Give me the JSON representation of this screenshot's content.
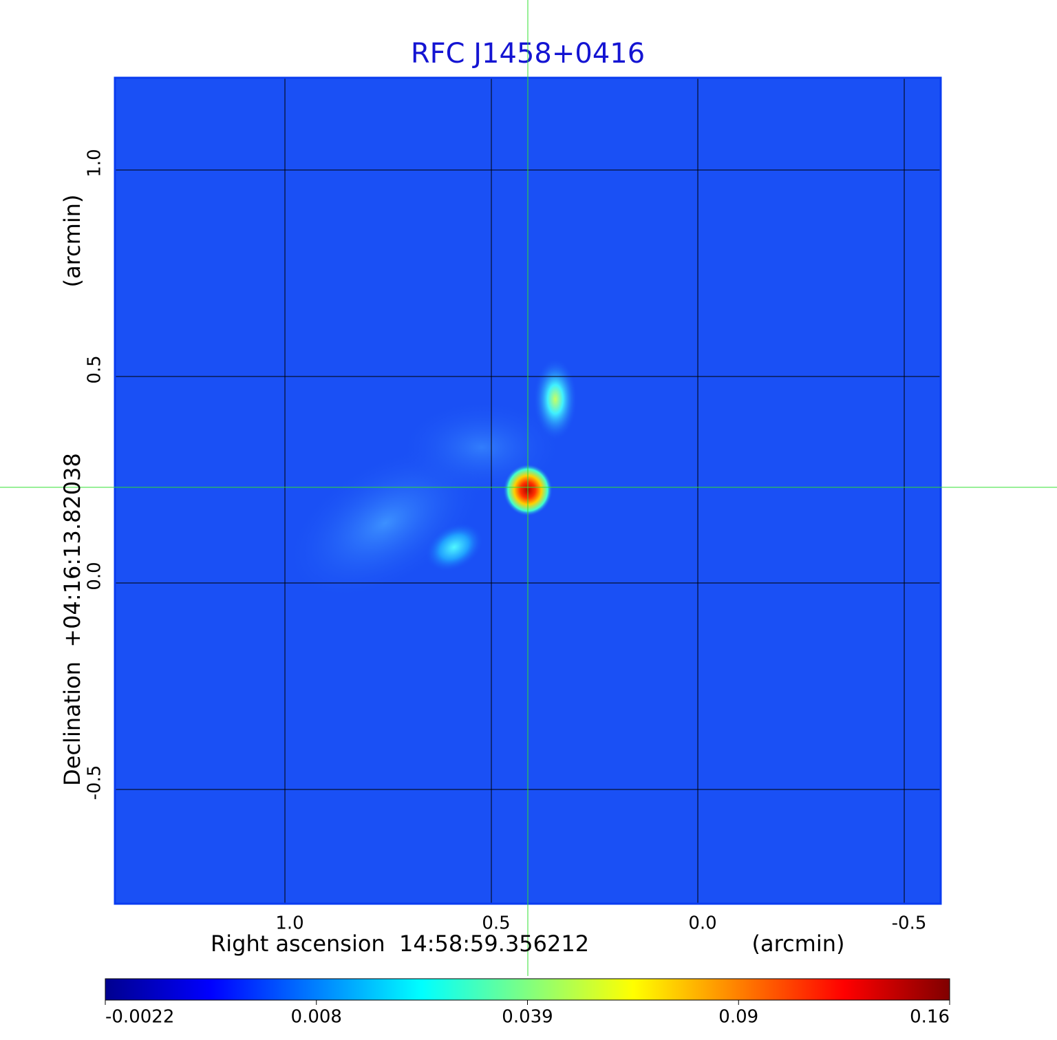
{
  "chart_data": {
    "type": "image",
    "title": "RFC J1458+0416",
    "x_label": "Right ascension  14:58:59.356212",
    "x_unit": "(arcmin)",
    "y_label": "Declination  +04:16:13.82038",
    "y_unit": "(arcmin)",
    "xlim": [
      1.4117,
      -0.5883
    ],
    "ylim": [
      -0.7767,
      1.2233
    ],
    "xticks": [
      {
        "value": 1,
        "label": "1.0"
      },
      0.5,
      {
        "value": 0,
        "label": "0.0"
      },
      -0.5
    ],
    "yticks": [
      -0.5,
      {
        "value": 0,
        "label": "0.0"
      },
      0.5,
      {
        "value": 1,
        "label": "1.0"
      }
    ],
    "grid": true,
    "colormap": "jet",
    "colorbar_ticks": [
      -0.0022,
      0.008,
      0.039,
      0.09,
      0.16
    ]
  }
}
